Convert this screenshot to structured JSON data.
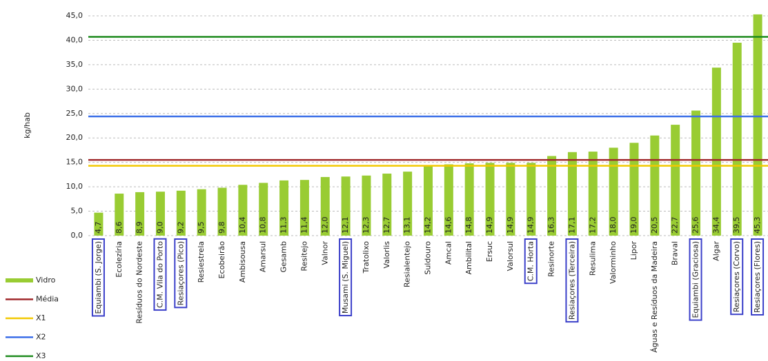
{
  "chart_data": {
    "type": "bar",
    "y_label": "kg/hab",
    "categories": [
      "Equiambi (S. Jorge)",
      "Ecolezíria",
      "Resíduos do Nordeste",
      "C.M. Vila do Porto",
      "Resiaçores (Pico)",
      "Resiestrela",
      "Ecobeirão",
      "Ambisousa",
      "Amarsul",
      "Gesamb",
      "Resitejo",
      "Valnor",
      "Musami (S. Miguel)",
      "Tratolixo",
      "Valorlis",
      "Resialentejo",
      "Suldouro",
      "Amcal",
      "Ambilital",
      "Ersuc",
      "Valorsul",
      "C.M. Horta",
      "Resinorte",
      "Resiaçores (Terceira)",
      "Resulima",
      "Valorminho",
      "Lipor",
      "Águas e Resíduos da Madeira",
      "Braval",
      "Equiambi (Graciosa)",
      "Algar",
      "Resiaçores (Corvo)",
      "Resiaçores (Flores)"
    ],
    "highlight": [
      true,
      false,
      false,
      true,
      true,
      false,
      false,
      false,
      false,
      false,
      false,
      false,
      true,
      false,
      false,
      false,
      false,
      false,
      false,
      false,
      false,
      true,
      false,
      true,
      false,
      false,
      false,
      false,
      false,
      true,
      false,
      true,
      true
    ],
    "highlight_color": "#3a3fc9",
    "series": [
      {
        "name": "Vidro",
        "color": "#99cc33",
        "values": [
          4.7,
          8.6,
          8.9,
          9.0,
          9.2,
          9.5,
          9.8,
          10.4,
          10.8,
          11.3,
          11.4,
          12.0,
          12.1,
          12.3,
          12.7,
          13.1,
          14.2,
          14.6,
          14.8,
          14.9,
          14.9,
          14.9,
          16.3,
          17.1,
          17.2,
          18.0,
          19.0,
          20.5,
          22.7,
          25.6,
          34.4,
          39.5,
          45.3
        ],
        "value_labels": [
          "4,7",
          "8,6",
          "8,9",
          "9,0",
          "9,2",
          "9,5",
          "9,8",
          "10,4",
          "10,8",
          "11,3",
          "11,4",
          "12,0",
          "12,1",
          "12,3",
          "12,7",
          "13,1",
          "14,2",
          "14,6",
          "14,8",
          "14,9",
          "14,9",
          "14,9",
          "16,3",
          "17,1",
          "17,2",
          "18,0",
          "19,0",
          "20,5",
          "22,7",
          "25,6",
          "34,4",
          "39,5",
          "45,3"
        ]
      }
    ],
    "lines": [
      {
        "name": "Média",
        "color": "#a0282b",
        "value": 15.5
      },
      {
        "name": "X1",
        "color": "#f2c800",
        "value": 14.3
      },
      {
        "name": "X2",
        "color": "#3b6fe8",
        "value": 24.4
      },
      {
        "name": "X3",
        "color": "#1d8a1d",
        "value": 40.7
      }
    ],
    "ylim": [
      0,
      45
    ],
    "yticks": [
      {
        "value": 0,
        "label": "0,0"
      },
      {
        "value": 5,
        "label": "5,0"
      },
      {
        "value": 10,
        "label": "10,0"
      },
      {
        "value": 15,
        "label": "15,0"
      },
      {
        "value": 20,
        "label": "20,0"
      },
      {
        "value": 25,
        "label": "25,0"
      },
      {
        "value": 30,
        "label": "30,0"
      },
      {
        "value": 35,
        "label": "35,0"
      },
      {
        "value": 40,
        "label": "40,0"
      },
      {
        "value": 45,
        "label": "45,0"
      }
    ],
    "grid": true
  }
}
